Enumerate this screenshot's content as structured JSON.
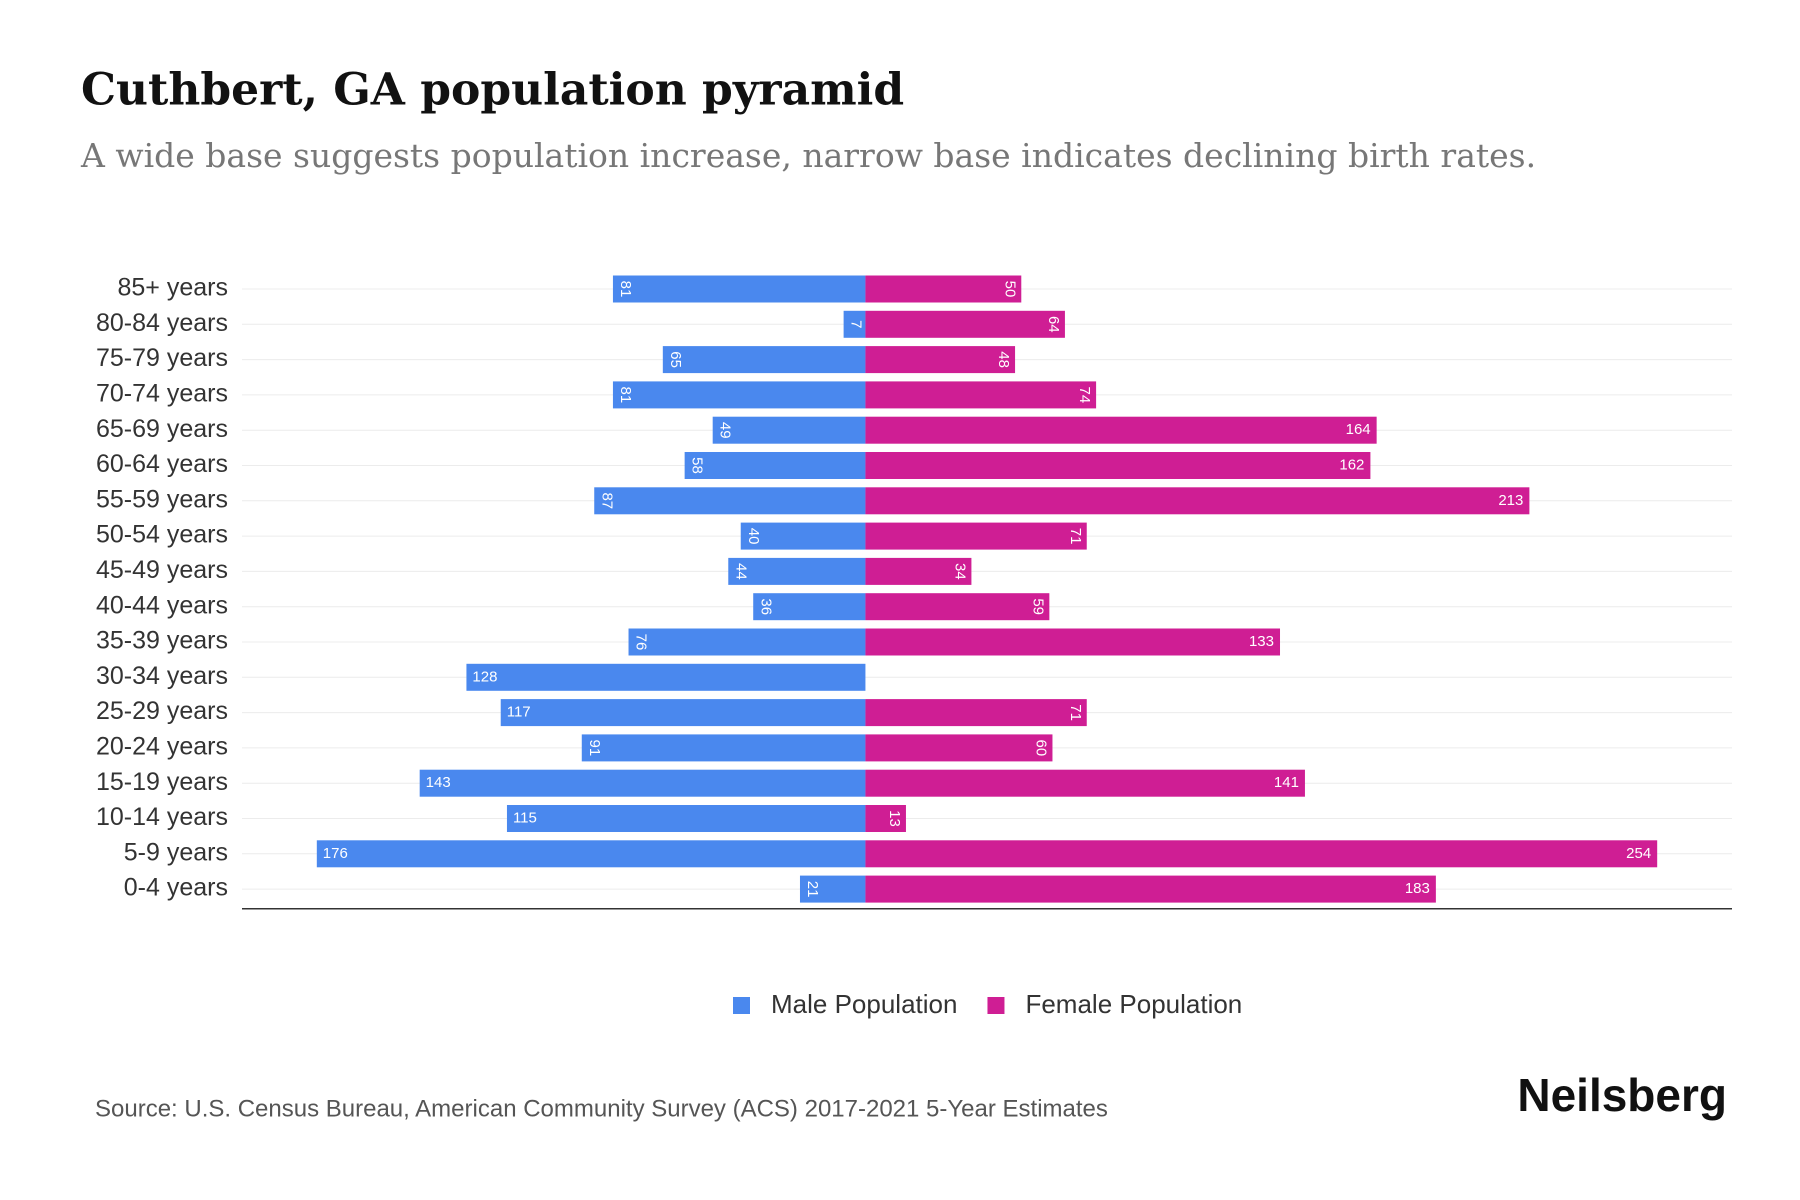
{
  "chart_data": {
    "type": "pyramid",
    "title": "Cuthbert, GA population pyramid",
    "subtitle": "A wide base suggests population increase, narrow base indicates declining birth rates.",
    "categories": [
      "85+ years",
      "80-84 years",
      "75-79 years",
      "70-74 years",
      "65-69 years",
      "60-64 years",
      "55-59 years",
      "50-54 years",
      "45-49 years",
      "40-44 years",
      "35-39 years",
      "30-34 years",
      "25-29 years",
      "20-24 years",
      "15-19 years",
      "10-14 years",
      "5-9 years",
      "0-4 years"
    ],
    "series": [
      {
        "name": "Male Population",
        "color": "#4a88ee",
        "side": "left",
        "values": [
          81,
          7,
          65,
          81,
          49,
          58,
          87,
          40,
          44,
          36,
          76,
          128,
          117,
          91,
          143,
          115,
          176,
          21
        ]
      },
      {
        "name": "Female Population",
        "color": "#cf1e94",
        "side": "right",
        "values": [
          50,
          64,
          48,
          74,
          164,
          162,
          213,
          71,
          34,
          59,
          133,
          null,
          71,
          60,
          141,
          13,
          254,
          183
        ]
      }
    ],
    "xlim": [
      -200,
      278
    ],
    "source": "Source: U.S. Census Bureau, American Community Survey (ACS) 2017-2021 5-Year Estimates",
    "brand": "Neilsberg"
  }
}
